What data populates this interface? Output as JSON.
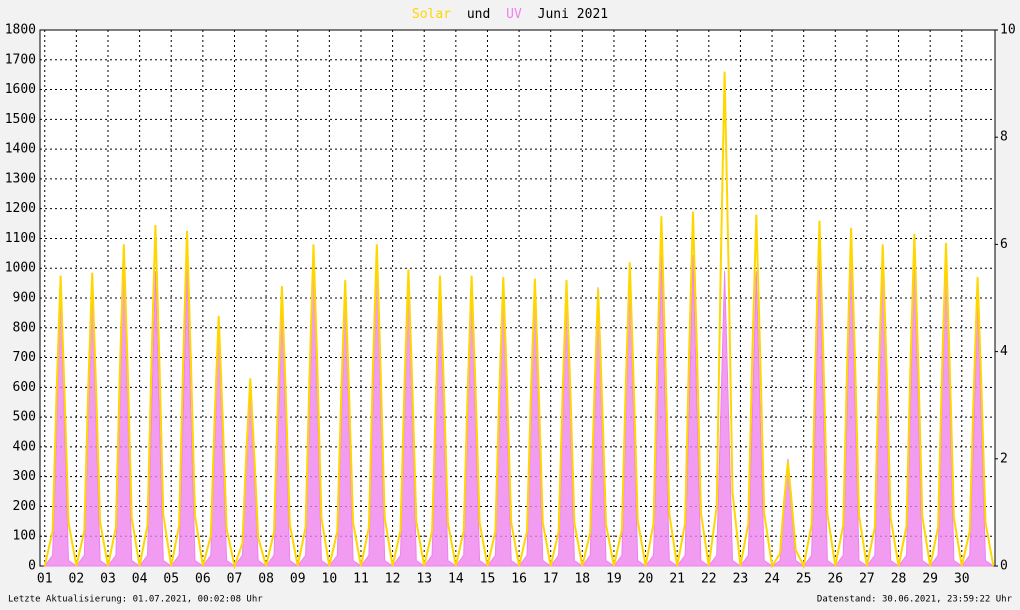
{
  "chart_data": {
    "type": "line",
    "title": "Juni 2021",
    "title_connector": "und",
    "footer_left": "Letzte Aktualisierung: 01.07.2021, 00:02:08 Uhr",
    "footer_right": "Datenstand: 30.06.2021, 23:59:22 Uhr",
    "xlim": [
      0.85,
      31.05
    ],
    "ylim": [
      0,
      1800
    ],
    "y2lim": [
      0,
      10
    ],
    "grid": true,
    "xticks": [
      {
        "value": 1,
        "label": "01"
      },
      {
        "value": 2,
        "label": "02"
      },
      {
        "value": 3,
        "label": "03"
      },
      {
        "value": 4,
        "label": "04"
      },
      {
        "value": 5,
        "label": "05"
      },
      {
        "value": 6,
        "label": "06"
      },
      {
        "value": 7,
        "label": "07"
      },
      {
        "value": 8,
        "label": "08"
      },
      {
        "value": 9,
        "label": "09"
      },
      {
        "value": 10,
        "label": "10"
      },
      {
        "value": 11,
        "label": "11"
      },
      {
        "value": 12,
        "label": "12"
      },
      {
        "value": 13,
        "label": "13"
      },
      {
        "value": 14,
        "label": "14"
      },
      {
        "value": 15,
        "label": "15"
      },
      {
        "value": 16,
        "label": "16"
      },
      {
        "value": 17,
        "label": "17"
      },
      {
        "value": 18,
        "label": "18"
      },
      {
        "value": 19,
        "label": "19"
      },
      {
        "value": 20,
        "label": "20"
      },
      {
        "value": 21,
        "label": "21"
      },
      {
        "value": 22,
        "label": "22"
      },
      {
        "value": 23,
        "label": "23"
      },
      {
        "value": 24,
        "label": "24"
      },
      {
        "value": 25,
        "label": "25"
      },
      {
        "value": 26,
        "label": "26"
      },
      {
        "value": 27,
        "label": "27"
      },
      {
        "value": 28,
        "label": "28"
      },
      {
        "value": 29,
        "label": "29"
      },
      {
        "value": 30,
        "label": "30"
      }
    ],
    "yticks": [
      0,
      100,
      200,
      300,
      400,
      500,
      600,
      700,
      800,
      900,
      1000,
      1100,
      1200,
      1300,
      1400,
      1500,
      1600,
      1700,
      1800
    ],
    "y2ticks": [
      0,
      2,
      4,
      6,
      8,
      10
    ],
    "x": [
      1,
      1.25,
      1.375,
      1.5,
      1.625,
      1.75,
      2,
      2.25,
      2.375,
      2.5,
      2.625,
      2.75,
      3,
      3.25,
      3.375,
      3.5,
      3.625,
      3.75,
      4,
      4.25,
      4.375,
      4.5,
      4.625,
      4.75,
      5,
      5.25,
      5.375,
      5.5,
      5.625,
      5.75,
      6,
      6.25,
      6.375,
      6.5,
      6.625,
      6.75,
      7,
      7.25,
      7.375,
      7.5,
      7.625,
      7.75,
      8,
      8.25,
      8.375,
      8.5,
      8.625,
      8.75,
      9,
      9.25,
      9.375,
      9.5,
      9.625,
      9.75,
      10,
      10.25,
      10.375,
      10.5,
      10.625,
      10.75,
      11,
      11.25,
      11.375,
      11.5,
      11.625,
      11.75,
      12,
      12.25,
      12.375,
      12.5,
      12.625,
      12.75,
      13,
      13.25,
      13.375,
      13.5,
      13.625,
      13.75,
      14,
      14.25,
      14.375,
      14.5,
      14.625,
      14.75,
      15,
      15.25,
      15.375,
      15.5,
      15.625,
      15.75,
      16,
      16.25,
      16.375,
      16.5,
      16.625,
      16.75,
      17,
      17.25,
      17.375,
      17.5,
      17.625,
      17.75,
      18,
      18.25,
      18.375,
      18.5,
      18.625,
      18.75,
      19,
      19.25,
      19.375,
      19.5,
      19.625,
      19.75,
      20,
      20.25,
      20.375,
      20.5,
      20.625,
      20.75,
      21,
      21.25,
      21.375,
      21.5,
      21.625,
      21.75,
      22,
      22.25,
      22.375,
      22.5,
      22.625,
      22.75,
      23,
      23.25,
      23.375,
      23.5,
      23.625,
      23.75,
      24,
      24.25,
      24.375,
      24.5,
      24.625,
      24.75,
      25,
      25.25,
      25.375,
      25.5,
      25.625,
      25.75,
      26,
      26.25,
      26.375,
      26.5,
      26.625,
      26.75,
      27,
      27.25,
      27.375,
      27.5,
      27.625,
      27.75,
      28,
      28.25,
      28.375,
      28.5,
      28.625,
      28.75,
      29,
      29.25,
      29.375,
      29.5,
      29.625,
      29.75,
      30,
      30.25,
      30.375,
      30.5,
      30.625,
      30.75,
      31
    ],
    "series": [
      {
        "name": "UV",
        "color": "#ee82ee",
        "axis": "y2",
        "values": [
          0,
          0.2,
          2.6,
          5.2,
          2.6,
          0.1,
          0,
          0.2,
          2.7,
          5.3,
          2.7,
          0.1,
          0,
          0.2,
          3,
          6,
          3,
          0.1,
          0,
          0.2,
          2.8,
          5.5,
          2.8,
          0.1,
          0,
          0.2,
          2.8,
          5.6,
          2.8,
          0.1,
          0,
          0.2,
          2.3,
          4.5,
          2.3,
          0.1,
          0,
          0.2,
          1.8,
          3.5,
          1.8,
          0.1,
          0,
          0.2,
          2.5,
          5,
          2.5,
          0.1,
          0,
          0.2,
          3,
          6,
          3,
          0.1,
          0,
          0.2,
          2.6,
          5.2,
          2.6,
          0.1,
          0,
          0.2,
          3,
          6,
          3,
          0.1,
          0,
          0.2,
          2.8,
          5.5,
          2.8,
          0.1,
          0,
          0.2,
          2.7,
          5.3,
          2.7,
          0.1,
          0,
          0.2,
          2.7,
          5.3,
          2.7,
          0.1,
          0,
          0.2,
          2.7,
          5.3,
          2.7,
          0.1,
          0,
          0.2,
          2.7,
          5.3,
          2.7,
          0.1,
          0,
          0.2,
          2.7,
          5.3,
          2.7,
          0.1,
          0,
          0.2,
          2.6,
          5.2,
          2.6,
          0.1,
          0,
          0.2,
          2.8,
          5.5,
          2.8,
          0.1,
          0,
          0.2,
          2.9,
          5.8,
          2.9,
          0.1,
          0,
          0.2,
          2.9,
          5.8,
          2.9,
          0.1,
          0,
          0.2,
          2.8,
          5.5,
          2.8,
          0.1,
          0,
          0.2,
          2.8,
          5.5,
          2.8,
          0.1,
          0,
          0.1,
          1,
          2,
          1,
          0.1,
          0,
          0.2,
          2.9,
          5.8,
          2.9,
          0.1,
          0,
          0.2,
          3,
          6,
          3,
          0.1,
          0,
          0.2,
          3,
          6,
          3,
          0.1,
          0,
          0.2,
          3,
          5.9,
          3,
          0.1,
          0,
          0.2,
          3,
          6,
          3,
          0.1,
          0,
          0.2,
          2.5,
          5,
          2.5,
          0.1,
          0
        ]
      },
      {
        "name": "Solar",
        "color": "#ffd700",
        "values": [
          0,
          117,
          585,
          975,
          585,
          146,
          0,
          118,
          591,
          985,
          591,
          148,
          0,
          130,
          648,
          1080,
          648,
          162,
          0,
          137,
          687,
          1145,
          687,
          172,
          0,
          135,
          675,
          1125,
          675,
          169,
          0,
          101,
          504,
          840,
          504,
          126,
          0,
          76,
          378,
          630,
          378,
          95,
          0,
          113,
          564,
          940,
          564,
          141,
          0,
          130,
          648,
          1080,
          648,
          162,
          0,
          115,
          576,
          960,
          576,
          144,
          0,
          130,
          648,
          1080,
          648,
          162,
          0,
          119,
          597,
          995,
          597,
          149,
          0,
          117,
          585,
          975,
          585,
          146,
          0,
          117,
          585,
          975,
          585,
          146,
          0,
          116,
          582,
          970,
          582,
          146,
          0,
          116,
          579,
          965,
          579,
          145,
          0,
          115,
          576,
          960,
          576,
          144,
          0,
          112,
          558,
          930,
          558,
          140,
          0,
          122,
          612,
          1020,
          612,
          153,
          0,
          141,
          705,
          1175,
          705,
          176,
          0,
          143,
          714,
          1190,
          714,
          179,
          0,
          199,
          996,
          1660,
          996,
          249,
          0,
          142,
          708,
          1180,
          708,
          177,
          0,
          42,
          210,
          350,
          210,
          53,
          0,
          139,
          696,
          1160,
          696,
          174,
          0,
          136,
          681,
          1135,
          681,
          170,
          0,
          130,
          648,
          1080,
          648,
          162,
          0,
          134,
          669,
          1115,
          669,
          167,
          0,
          130,
          651,
          1085,
          651,
          163,
          0,
          116,
          582,
          970,
          582,
          146,
          0
        ]
      }
    ]
  }
}
